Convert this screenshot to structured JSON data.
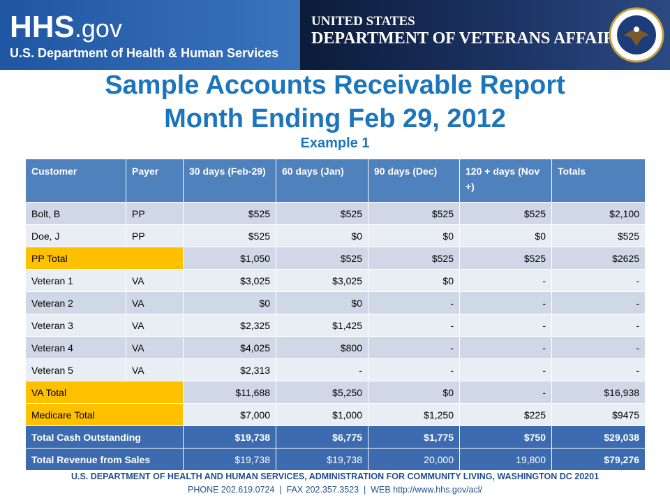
{
  "header": {
    "hhs_logo": "HHS",
    "hhs_suffix": ".gov",
    "hhs_name": "U.S. Department of Health & Human Services",
    "va_line1": "UNITED STATES",
    "va_line2": "DEPARTMENT OF VETERANS AFFAIRS"
  },
  "title": [
    "Sample Accounts Receivable Report",
    "Month Ending Feb 29, 2012"
  ],
  "subtitle": "Example 1",
  "table": {
    "header": [
      "Customer",
      "Payer",
      "30 days (Feb-29)",
      "60 days (Jan)",
      "90 days (Dec)",
      "120 + days (Nov +)",
      "Totals"
    ],
    "rows": [
      [
        "Bolt, B",
        "PP",
        "$525",
        "$525",
        "$525",
        "$525",
        "$2,100"
      ],
      [
        "Doe, J",
        "PP",
        "$525",
        "$0",
        "$0",
        "$0",
        "$525"
      ],
      [
        "PP Total",
        "$1,050",
        "$525",
        "$525",
        "$525",
        "$2625"
      ],
      [
        "Veteran 1",
        "VA",
        "$3,025",
        "$3,025",
        "$0",
        "-",
        "-"
      ],
      [
        "Veteran 2",
        "VA",
        "$0",
        "$0",
        "-",
        "-",
        "-"
      ],
      [
        "Veteran 3",
        "VA",
        "$2,325",
        "$1,425",
        "-",
        "-",
        "-"
      ],
      [
        "Veteran 4",
        "VA",
        "$4,025",
        "$800",
        "-",
        "-",
        "-"
      ],
      [
        "Veteran 5",
        "VA",
        "$2,313",
        "-",
        "-",
        "-",
        "-"
      ],
      [
        "VA Total",
        "$11,688",
        "$5,250",
        "$0",
        "-",
        "$16,938"
      ],
      [
        "Medicare  Total",
        "$7,000",
        "$1,000",
        "$1,250",
        "$225",
        "$9475"
      ]
    ],
    "summary_rows": [
      [
        "Total  Cash Outstanding",
        "$19,738",
        "$6,775",
        "$1,775",
        "$750",
        "$29,038"
      ],
      [
        "Total  Revenue from Sales",
        "$19,738",
        "$19,738",
        "20,000",
        "19,800",
        "$79,276"
      ]
    ]
  },
  "footer": [
    "U.S. DEPARTMENT OF HEALTH AND HUMAN SERVICES, ADMINISTRATION FOR COMMUNITY LIVING, WASHINGTON DC 20201",
    "PHONE 202.619.0724  |  FAX 202.357.3523  |  WEB http://www.hhs.gov/acl/"
  ]
}
